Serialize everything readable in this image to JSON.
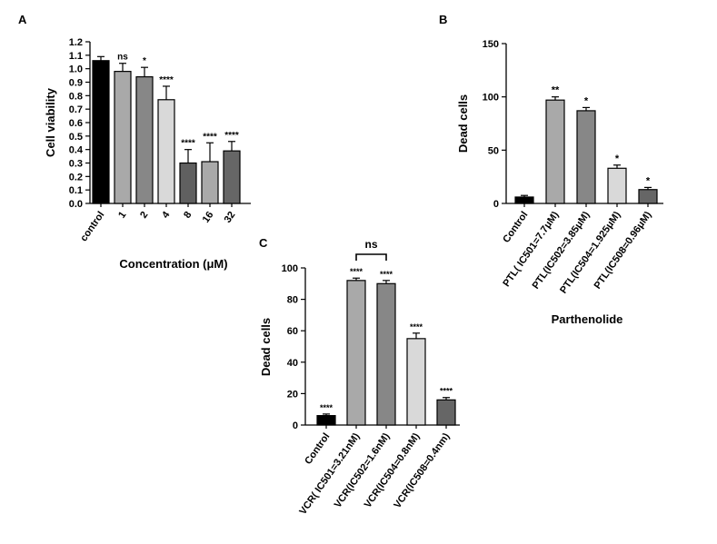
{
  "chart_data": [
    {
      "panel": "A",
      "type": "bar",
      "title": "",
      "xlabel": "Concentration (μM)",
      "ylabel": "Cell viability",
      "ylim": [
        0,
        1.2
      ],
      "yticks": [
        "0.0",
        "0.1",
        "0.2",
        "0.3",
        "0.4",
        "0.5",
        "0.6",
        "0.7",
        "0.8",
        "0.9",
        "1.0",
        "1.1",
        "1.2"
      ],
      "categories": [
        "control",
        "1",
        "2",
        "4",
        "8",
        "16",
        "32"
      ],
      "values": [
        1.06,
        0.98,
        0.94,
        0.77,
        0.3,
        0.31,
        0.39
      ],
      "errors": [
        0.03,
        0.06,
        0.07,
        0.1,
        0.1,
        0.14,
        0.07
      ],
      "annotations": [
        "",
        "ns",
        "*",
        "****",
        "****",
        "****",
        "****"
      ],
      "colors": [
        "#000000",
        "#a9a9a9",
        "#878787",
        "#d9d9d9",
        "#606060",
        "#a9a9a9",
        "#666666"
      ]
    },
    {
      "panel": "B",
      "type": "bar",
      "title": "",
      "xlabel": "Parthenolide",
      "ylabel": "Dead cells",
      "ylim": [
        0,
        150
      ],
      "yticks": [
        "0",
        "50",
        "100",
        "150"
      ],
      "categories": [
        "Control",
        "PTL( IC501=7.7μM)",
        "PTL(IC502=3.85μM)",
        "PTL(IC504=1.925μM)",
        "PTL(IC508=0.96μM)"
      ],
      "values": [
        6,
        97,
        87,
        33,
        13
      ],
      "errors": [
        1.5,
        3,
        3,
        3,
        2
      ],
      "annotations": [
        "",
        "**",
        "*",
        "*",
        "*"
      ],
      "colors": [
        "#000000",
        "#a9a9a9",
        "#878787",
        "#d9d9d9",
        "#666666"
      ]
    },
    {
      "panel": "C",
      "type": "bar",
      "title": "",
      "xlabel": "",
      "ylabel": "Dead cells",
      "ylim": [
        0,
        100
      ],
      "yticks": [
        "0",
        "20",
        "40",
        "60",
        "80",
        "100"
      ],
      "categories": [
        "Control",
        "VCR( IC501=3.21nM)",
        "VCR(IC502=1.6nM)",
        "VCR(IC504=0.8nM)",
        "VCR(IC508=0.4nm)"
      ],
      "values": [
        6,
        92,
        90,
        55,
        16
      ],
      "errors": [
        1.0,
        1.5,
        2.0,
        3.5,
        1.5
      ],
      "annotations": [
        "****",
        "****",
        "****",
        "****",
        "****"
      ],
      "colors": [
        "#000000",
        "#a9a9a9",
        "#878787",
        "#d9d9d9",
        "#666666"
      ],
      "comparison": {
        "bars": [
          1,
          2
        ],
        "label": "ns"
      }
    }
  ]
}
